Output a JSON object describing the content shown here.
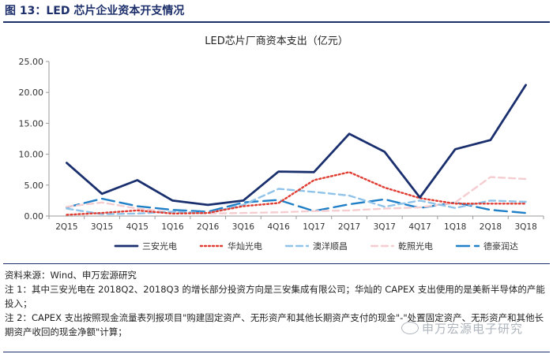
{
  "figure_title": "图 13：LED 芯片企业资本开支情况",
  "notes": {
    "source": "资料来源：Wind、申万宏源研究",
    "note1": "注 1：其中三安光电在 2018Q2、2018Q3 的增长部分投资方向是三安集成有限公司；华灿的 CAPEX 支出使用的是美新半导体的产能投入；",
    "note2": "注 2：CAPEX 支出按照现金流量表列报项目\"购建固定资产、无形资产和其他长期资产支付的现金\"-\"处置固定资产、无形资产和其他长期资产收回的现金净额\"计算；"
  },
  "watermark": "申万宏源电子研究",
  "chart_data": {
    "type": "line",
    "title": "LED芯片厂商资本支出（亿元）",
    "xlabel": "",
    "ylabel": "",
    "categories": [
      "2Q15",
      "3Q15",
      "4Q15",
      "1Q16",
      "2Q16",
      "3Q16",
      "4Q16",
      "1Q17",
      "2Q17",
      "3Q17",
      "4Q17",
      "1Q18",
      "2Q18",
      "3Q18"
    ],
    "y_tick_labels": [
      "0.00",
      "5.00",
      "10.00",
      "15.00",
      "20.00",
      "25.00"
    ],
    "ylim": [
      0,
      25
    ],
    "grid": false,
    "legend_position": "bottom",
    "series": [
      {
        "name": "三安光电",
        "color": "#1a2f6e",
        "style": "solid",
        "values": [
          8.6,
          3.6,
          5.8,
          2.5,
          1.8,
          2.5,
          7.2,
          7.1,
          13.3,
          10.4,
          3.0,
          10.8,
          12.3,
          21.2
        ]
      },
      {
        "name": "华灿光电",
        "color": "#e03c31",
        "style": "dotted",
        "values": [
          0.2,
          0.5,
          0.9,
          0.4,
          0.5,
          1.6,
          2.1,
          5.8,
          7.1,
          4.6,
          2.9,
          2.0,
          2.0,
          2.0
        ]
      },
      {
        "name": "澳洋顺昌",
        "color": "#8fc3ea",
        "style": "dashed",
        "values": [
          1.2,
          0.3,
          0.4,
          0.7,
          0.5,
          1.8,
          4.4,
          3.9,
          3.3,
          1.5,
          2.5,
          1.3,
          2.5,
          2.3
        ]
      },
      {
        "name": "乾照光电",
        "color": "#f5cdd0",
        "style": "dashed",
        "values": [
          1.5,
          2.2,
          1.2,
          0.6,
          0.4,
          0.5,
          0.6,
          0.8,
          0.9,
          1.2,
          1.4,
          2.2,
          6.3,
          6.0
        ]
      },
      {
        "name": "德豪润达",
        "color": "#1f7fc7",
        "style": "longdash",
        "values": [
          1.4,
          2.8,
          1.6,
          1.0,
          0.7,
          2.2,
          2.6,
          0.8,
          1.9,
          2.7,
          1.3,
          2.2,
          1.0,
          0.5
        ]
      }
    ]
  }
}
